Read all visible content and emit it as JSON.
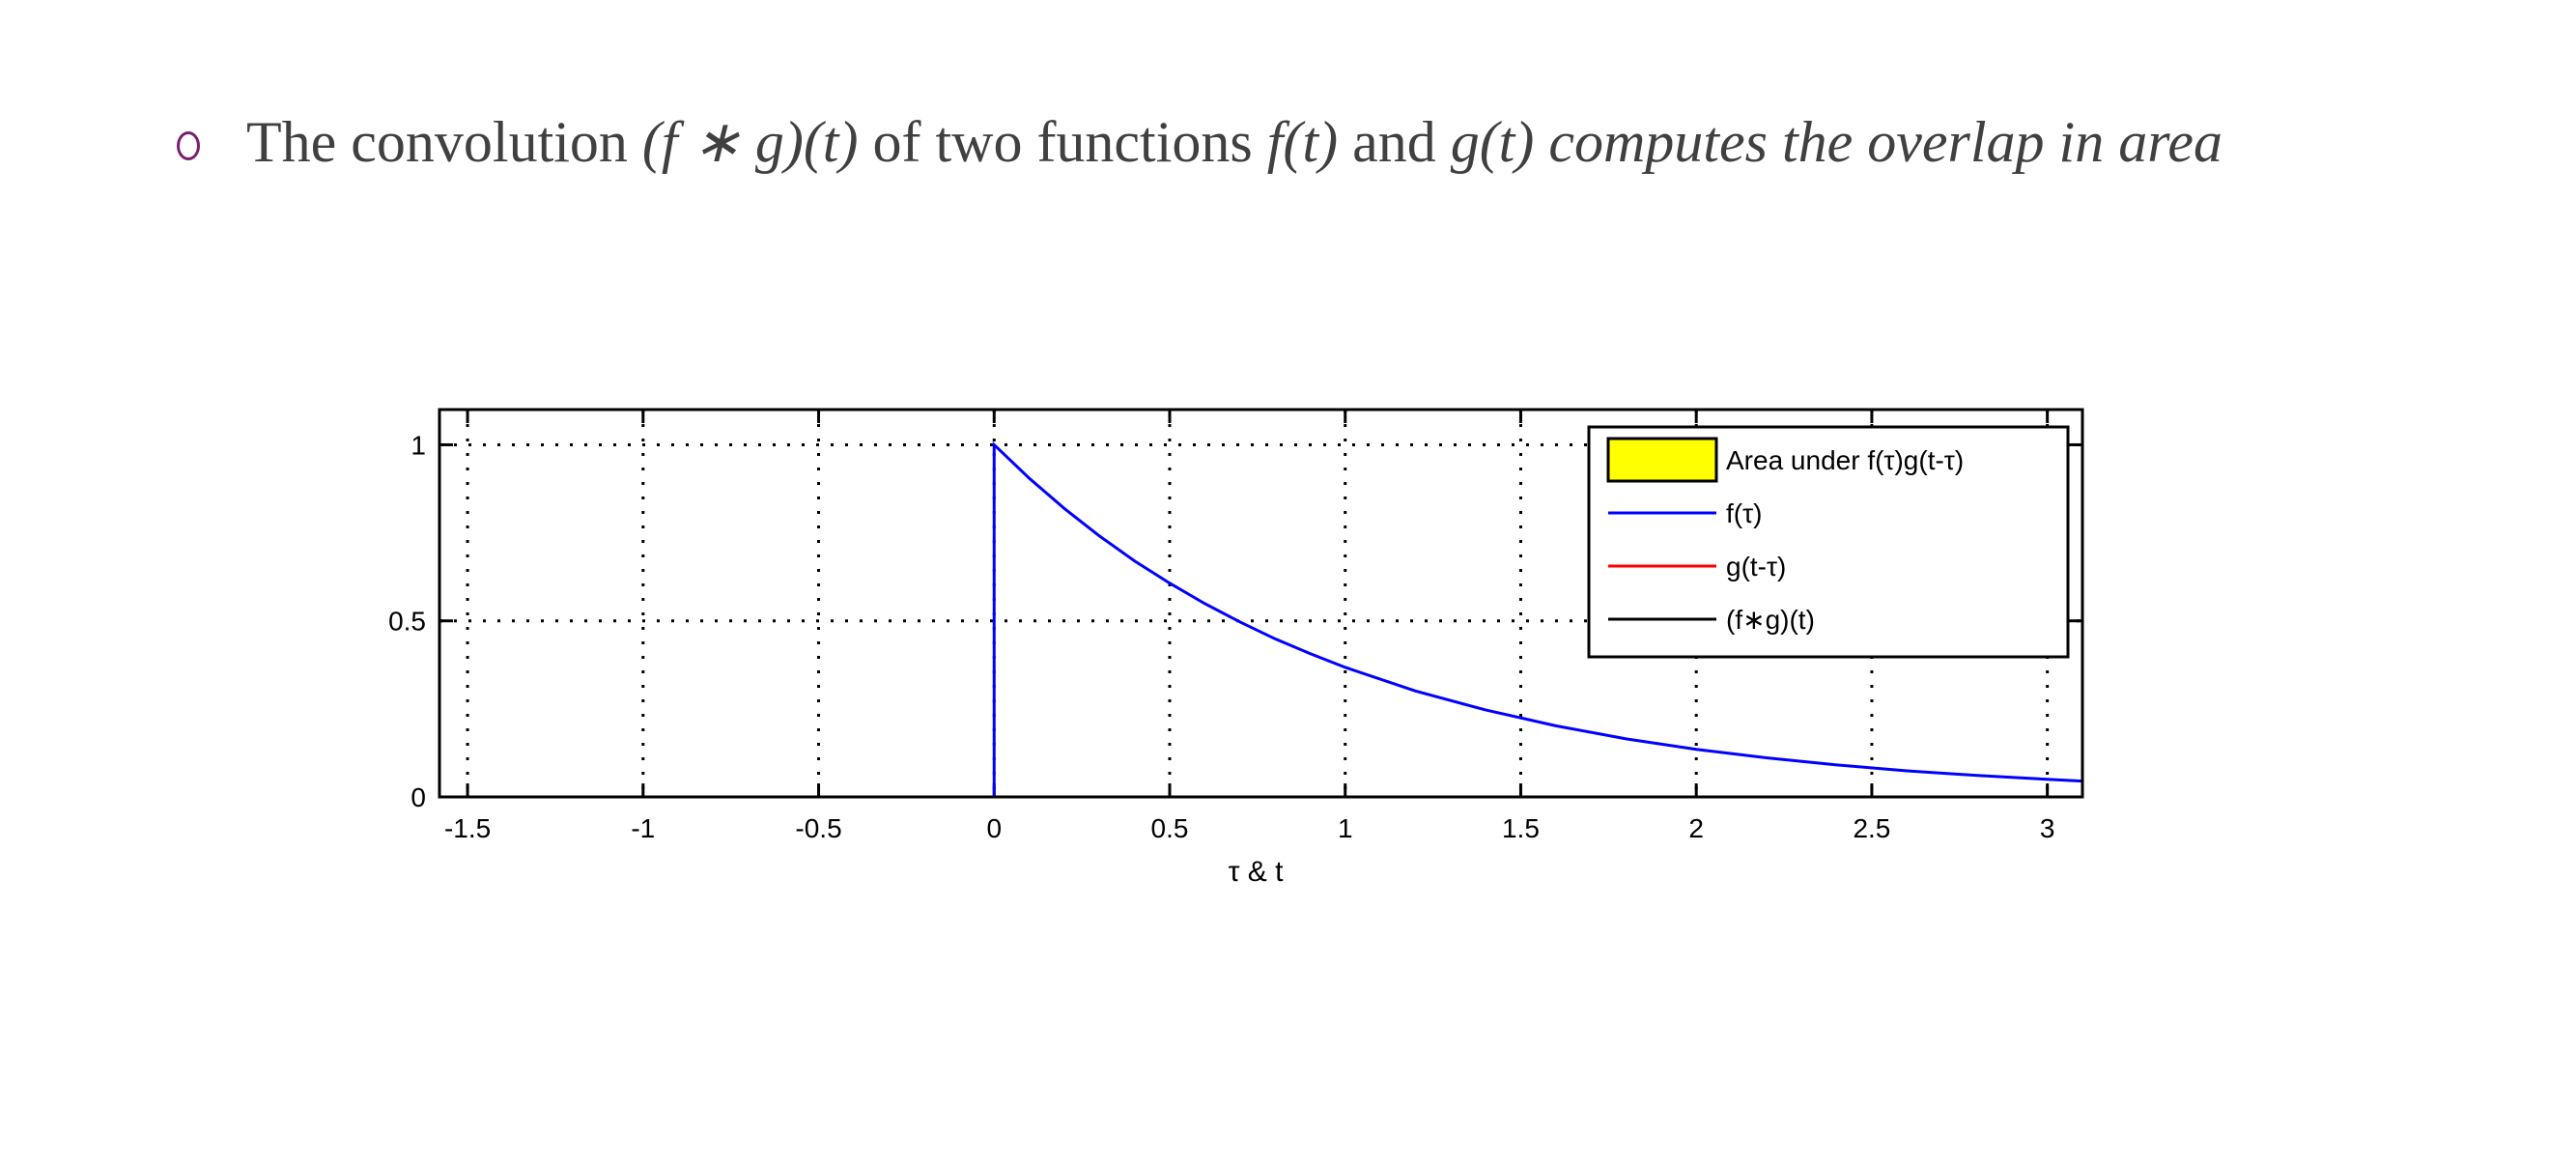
{
  "slide": {
    "bullet_icon": "hollow-circle-bullet",
    "bullet_color": "#7a1f6e",
    "text": {
      "p1": "The convolution ",
      "m1": "(f ∗ g)(t)",
      "p2": " of two functions ",
      "m2": "f(t)",
      "p3": " and ",
      "m3": "g(t)",
      "p4": " ",
      "em": "computes the overlap in area"
    }
  },
  "chart_data": {
    "type": "line",
    "xlabel": "τ & t",
    "ylabel": "",
    "xlim": [
      -1.58,
      3.1
    ],
    "ylim": [
      0,
      1.1
    ],
    "xticks": [
      "-1.5",
      "-1",
      "-0.5",
      "0",
      "0.5",
      "1",
      "1.5",
      "2",
      "2.5",
      "3"
    ],
    "xtick_values": [
      -1.5,
      -1,
      -0.5,
      0,
      0.5,
      1,
      1.5,
      2,
      2.5,
      3
    ],
    "yticks": [
      "0",
      "0.5",
      "1"
    ],
    "ytick_values": [
      0,
      0.5,
      1
    ],
    "grid": true,
    "legend_position": "top-right",
    "legend": [
      {
        "label": "Area under f(τ)g(t-τ)",
        "type": "patch",
        "color": "#ffff00"
      },
      {
        "label": "f(τ)",
        "type": "line",
        "color": "#0000ff"
      },
      {
        "label": "g(t-τ)",
        "type": "line",
        "color": "#ff0000"
      },
      {
        "label": "(f∗g)(t)",
        "type": "line",
        "color": "#000000"
      }
    ],
    "series": [
      {
        "name": "f(τ)",
        "color": "#0000ff",
        "x": [
          0,
          0,
          0.1,
          0.2,
          0.3,
          0.4,
          0.5,
          0.6,
          0.7,
          0.8,
          0.9,
          1.0,
          1.2,
          1.4,
          1.6,
          1.8,
          2.0,
          2.2,
          2.4,
          2.6,
          2.8,
          3.0,
          3.1
        ],
        "y": [
          0,
          1,
          0.905,
          0.819,
          0.741,
          0.67,
          0.607,
          0.549,
          0.497,
          0.449,
          0.407,
          0.368,
          0.301,
          0.247,
          0.202,
          0.165,
          0.135,
          0.111,
          0.091,
          0.074,
          0.061,
          0.05,
          0.045
        ]
      }
    ]
  }
}
